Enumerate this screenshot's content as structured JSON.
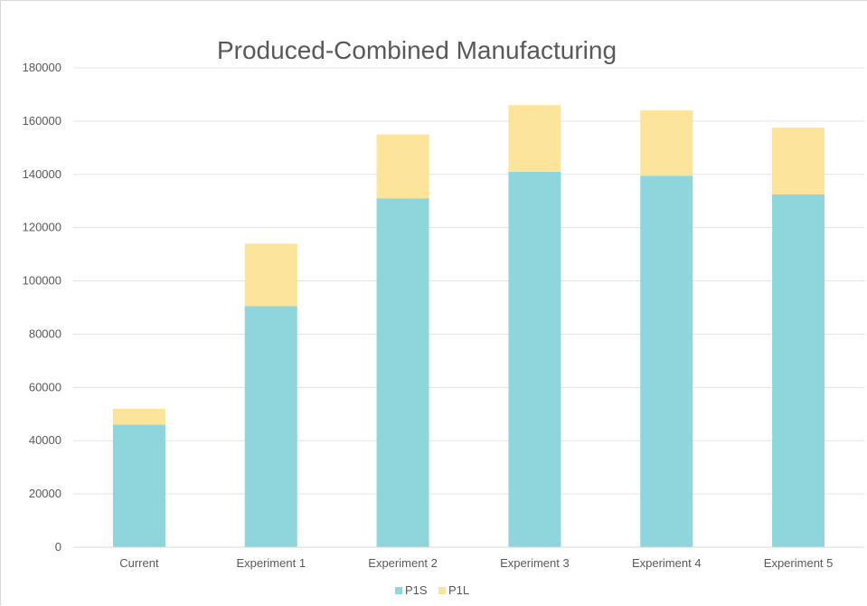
{
  "chart_data": {
    "type": "bar",
    "stacked": true,
    "title": "Produced-Combined Manufacturing",
    "xlabel": "",
    "ylabel": "",
    "categories": [
      "Current",
      "Experiment 1",
      "Experiment 2",
      "Experiment 3",
      "Experiment 4",
      "Experiment 5"
    ],
    "series": [
      {
        "name": "P1S",
        "color": "#8fd6dc",
        "values": [
          46000,
          90500,
          131000,
          141000,
          139500,
          132500
        ]
      },
      {
        "name": "P1L",
        "color": "#fce49b",
        "values": [
          6000,
          23500,
          24000,
          25000,
          24500,
          25000
        ]
      }
    ],
    "ylim": [
      0,
      180000
    ],
    "yticks": [
      "0",
      "20000",
      "40000",
      "60000",
      "80000",
      "100000",
      "120000",
      "140000",
      "160000",
      "180000"
    ],
    "grid": true,
    "legend_position": "bottom"
  }
}
